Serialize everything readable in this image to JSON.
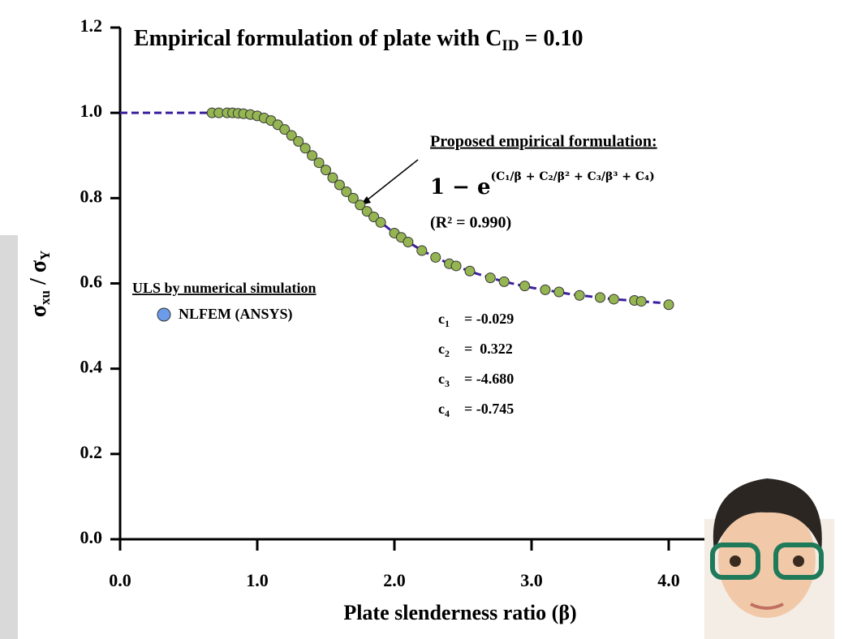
{
  "chart_data": {
    "type": "scatter",
    "title": "Empirical formulation of plate with C",
    "title_sub": "ID",
    "title_end": " = 0.10",
    "xlabel": "Plate slenderness ratio (β)",
    "ylabel": "σ",
    "ylabel_sub": "xu",
    "ylabel_mid": " / σ",
    "ylabel_sub2": "Y",
    "xlim": [
      0,
      4.5
    ],
    "ylim": [
      0,
      1.2
    ],
    "xticks": [
      {
        "value": 0,
        "label": "0.0"
      },
      {
        "value": 1,
        "label": "1.0"
      },
      {
        "value": 2,
        "label": "2.0"
      },
      {
        "value": 3,
        "label": "3.0"
      },
      {
        "value": 4,
        "label": "4.0"
      }
    ],
    "yticks": [
      {
        "value": 0,
        "label": "0.0"
      },
      {
        "value": 0.2,
        "label": "0.2"
      },
      {
        "value": 0.4,
        "label": "0.4"
      },
      {
        "value": 0.6,
        "label": "0.6"
      },
      {
        "value": 0.8,
        "label": "0.8"
      },
      {
        "value": 1,
        "label": "1.0"
      },
      {
        "value": 1.2,
        "label": "1.2"
      }
    ],
    "legend_title": "ULS by numerical simulation",
    "series": [
      {
        "name": "NLFEM (ANSYS)",
        "color": "#6c9bea",
        "point_color": "#95b553",
        "x": [
          0.67,
          0.72,
          0.78,
          0.82,
          0.86,
          0.9,
          0.95,
          1.0,
          1.05,
          1.1,
          1.15,
          1.2,
          1.25,
          1.3,
          1.35,
          1.4,
          1.45,
          1.5,
          1.55,
          1.6,
          1.65,
          1.7,
          1.75,
          1.8,
          1.85,
          1.9,
          2.0,
          2.05,
          2.1,
          2.2,
          2.3,
          2.4,
          2.45,
          2.55,
          2.7,
          2.8,
          2.95,
          3.1,
          3.2,
          3.35,
          3.5,
          3.6,
          3.75,
          3.8,
          4.0
        ],
        "values": [
          1.0,
          1.0,
          1.0,
          1.0,
          0.999,
          0.998,
          0.996,
          0.993,
          0.988,
          0.982,
          0.972,
          0.961,
          0.947,
          0.933,
          0.917,
          0.9,
          0.883,
          0.866,
          0.848,
          0.831,
          0.815,
          0.8,
          0.784,
          0.769,
          0.756,
          0.743,
          0.718,
          0.708,
          0.697,
          0.677,
          0.661,
          0.646,
          0.641,
          0.629,
          0.613,
          0.604,
          0.594,
          0.585,
          0.58,
          0.572,
          0.567,
          0.563,
          0.56,
          0.558,
          0.55
        ]
      }
    ],
    "fit": {
      "color": "#3b1f9e",
      "x": [
        0,
        0.5,
        0.8,
        0.9,
        1.0,
        1.1,
        1.2,
        1.3,
        1.4,
        1.5,
        1.6,
        1.8,
        2.0,
        2.2,
        2.4,
        2.6,
        2.8,
        3.0,
        3.3,
        3.6,
        4.0
      ],
      "values": [
        1.0,
        1.0,
        1.0,
        0.999,
        0.994,
        0.982,
        0.961,
        0.933,
        0.9,
        0.866,
        0.831,
        0.769,
        0.718,
        0.677,
        0.646,
        0.623,
        0.604,
        0.59,
        0.574,
        0.563,
        0.553
      ]
    },
    "annotations": {
      "heading": "Proposed empirical formulation:",
      "formula_base": "1 − e",
      "formula_exp": "(C₁/β + C₂/β² + C₃/β³ + C₄)",
      "r2": "(R² = 0.990)",
      "coefficients": [
        {
          "name": "c",
          "sub": "1",
          "value": "= -0.029"
        },
        {
          "name": "c",
          "sub": "2",
          "value": "=  0.322"
        },
        {
          "name": "c",
          "sub": "3",
          "value": "= -4.680"
        },
        {
          "name": "c",
          "sub": "4",
          "value": "= -0.745"
        }
      ]
    }
  }
}
